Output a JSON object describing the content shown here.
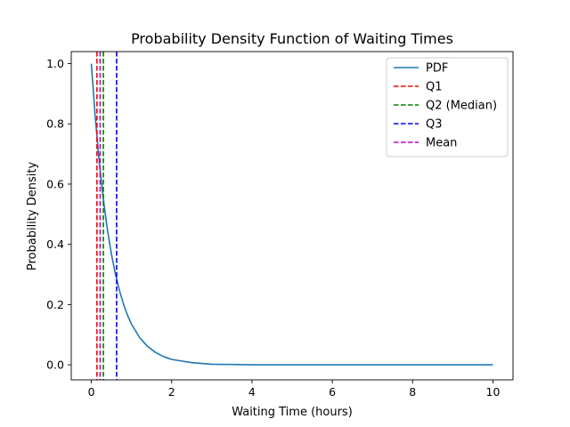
{
  "chart_data": {
    "type": "line",
    "title": "Probability Density Function of Waiting Times",
    "xlabel": "Waiting Time (hours)",
    "ylabel": "Probability Density",
    "xlim": [
      -0.5,
      10.5
    ],
    "ylim": [
      -0.05,
      1.04
    ],
    "x_ticks": [
      0,
      2,
      4,
      6,
      8,
      10
    ],
    "y_ticks": [
      0.0,
      0.2,
      0.4,
      0.6,
      0.8,
      1.0
    ],
    "x_tick_labels": [
      "0",
      "2",
      "4",
      "6",
      "8",
      "10"
    ],
    "y_tick_labels": [
      "0.0",
      "0.2",
      "0.4",
      "0.6",
      "0.8",
      "1.0"
    ],
    "grid": false,
    "legend_position": "top-right",
    "series": [
      {
        "name": "PDF",
        "color": "#1f77b4",
        "style": "solid",
        "x": [
          0,
          0.1,
          0.2,
          0.3,
          0.4,
          0.5,
          0.6,
          0.7,
          0.8,
          0.9,
          1.0,
          1.2,
          1.4,
          1.6,
          1.8,
          2.0,
          2.5,
          3.0,
          3.5,
          4.0,
          5.0,
          6.0,
          7.0,
          8.0,
          9.0,
          10.0
        ],
        "y": [
          1.0,
          0.819,
          0.67,
          0.549,
          0.449,
          0.368,
          0.301,
          0.247,
          0.202,
          0.165,
          0.135,
          0.091,
          0.061,
          0.041,
          0.027,
          0.018,
          0.007,
          0.002,
          0.001,
          0.0,
          0.0,
          0.0,
          0.0,
          0.0,
          0.0,
          0.0
        ]
      }
    ],
    "vlines": [
      {
        "name": "Q1",
        "x": 0.14,
        "color": "#ff0000",
        "style": "dashed"
      },
      {
        "name": "Q2 (Median)",
        "x": 0.3,
        "color": "#008000",
        "style": "dashed"
      },
      {
        "name": "Q3",
        "x": 0.63,
        "color": "#0000ff",
        "style": "dashed"
      },
      {
        "name": "Mean",
        "x": 0.22,
        "color": "#bf00bf",
        "style": "dashed"
      }
    ],
    "legend_order": [
      "PDF",
      "Q1",
      "Q2 (Median)",
      "Q3",
      "Mean"
    ]
  }
}
